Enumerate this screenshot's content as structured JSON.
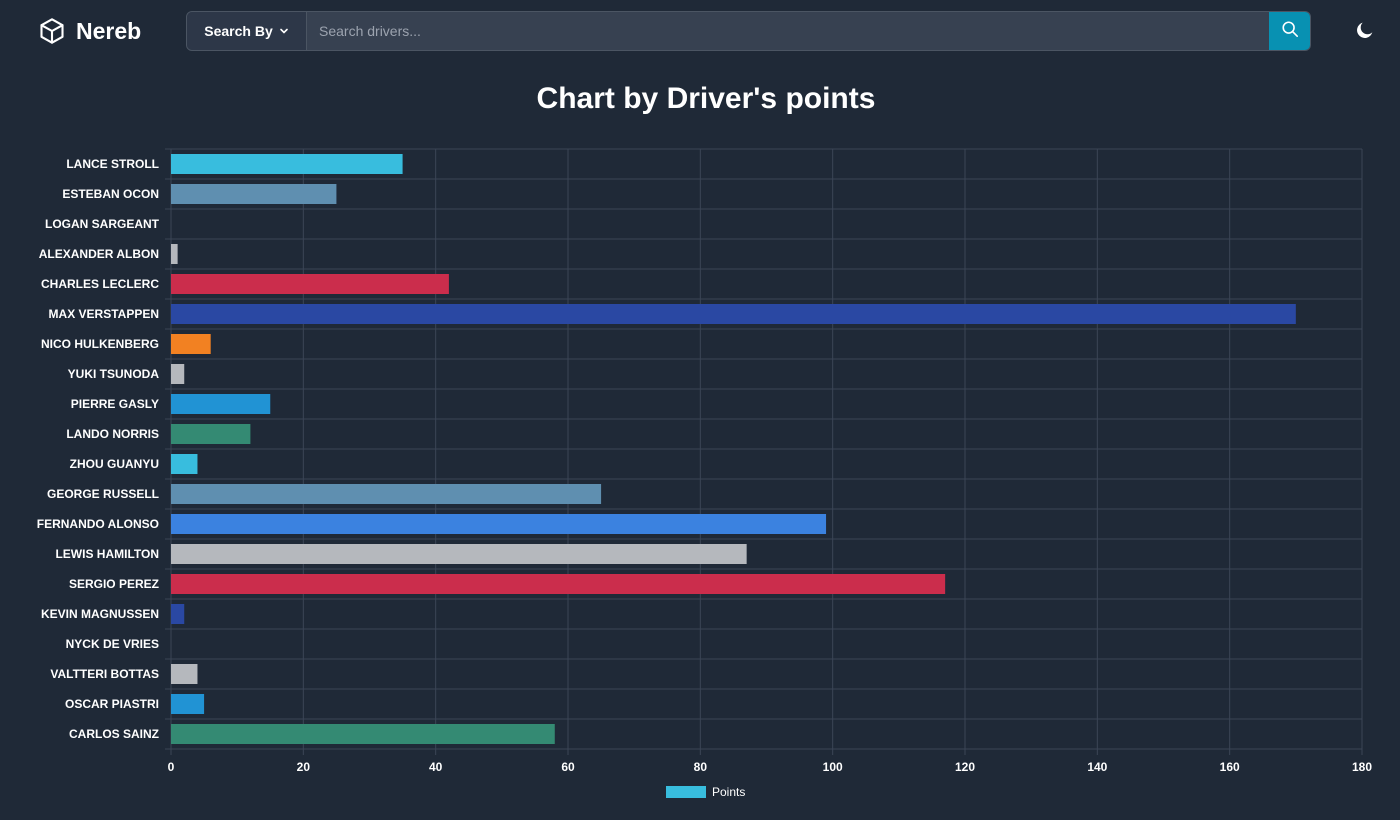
{
  "brand": {
    "name": "Nereb"
  },
  "search": {
    "by_label": "Search By",
    "placeholder": "Search drivers..."
  },
  "icons": {
    "logo": "cube-icon",
    "dropdown": "chevron-down-icon",
    "search": "search-icon",
    "theme": "moon-icon"
  },
  "colors": {
    "background": "#1f2937",
    "accent": "#0891b2"
  },
  "chart_data": {
    "type": "bar",
    "orientation": "horizontal",
    "title": "Chart by Driver's points",
    "categories": [
      "LANCE STROLL",
      "ESTEBAN OCON",
      "LOGAN SARGEANT",
      "ALEXANDER ALBON",
      "CHARLES LECLERC",
      "MAX VERSTAPPEN",
      "NICO HULKENBERG",
      "YUKI TSUNODA",
      "PIERRE GASLY",
      "LANDO NORRIS",
      "ZHOU GUANYU",
      "GEORGE RUSSELL",
      "FERNANDO ALONSO",
      "LEWIS HAMILTON",
      "SERGIO PEREZ",
      "KEVIN MAGNUSSEN",
      "NYCK DE VRIES",
      "VALTTERI BOTTAS",
      "OSCAR PIASTRI",
      "CARLOS SAINZ"
    ],
    "series": [
      {
        "name": "Points",
        "values": [
          35,
          25,
          0,
          1,
          42,
          170,
          6,
          2,
          15,
          12,
          4,
          65,
          99,
          87,
          117,
          2,
          0,
          4,
          5,
          58
        ],
        "colors": [
          "#38bdde",
          "#5f8fb0",
          "#9ca3af",
          "#b5b8bd",
          "#cb2d4c",
          "#2a48a3",
          "#f28122",
          "#b5b8bd",
          "#2193d4",
          "#348a73",
          "#38bdde",
          "#5f8fb0",
          "#3b82e0",
          "#b5b8bd",
          "#cb2d4c",
          "#2a48a3",
          "#b5b8bd",
          "#b5b8bd",
          "#2193d4",
          "#348a73"
        ]
      }
    ],
    "xlim": [
      0,
      180
    ],
    "xticks": [
      0,
      20,
      40,
      60,
      80,
      100,
      120,
      140,
      160,
      180
    ],
    "grid": true,
    "legend": {
      "position": "bottom",
      "label": "Points",
      "color": "#38bdde"
    }
  }
}
